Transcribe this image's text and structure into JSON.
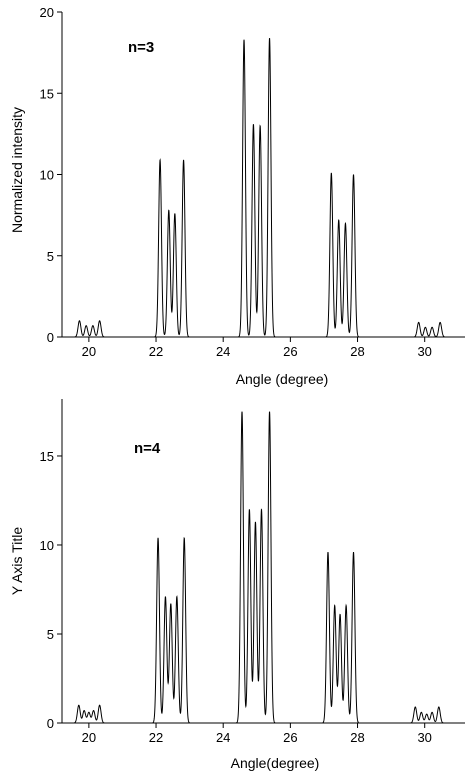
{
  "chart_data": [
    {
      "type": "line",
      "annotation": "n=3",
      "xlabel": "Angle (degree)",
      "ylabel": "Normalized intensity",
      "xlim": [
        19.2,
        31.2
      ],
      "ylim": [
        0,
        20
      ],
      "x_ticks": [
        20,
        22,
        24,
        26,
        28,
        30
      ],
      "y_ticks": [
        0,
        5,
        10,
        15,
        20
      ],
      "x_tick_labels": [
        "20",
        "22",
        "24",
        "26",
        "28",
        "30"
      ],
      "y_tick_labels": [
        "0",
        "5",
        "10",
        "15",
        "20"
      ],
      "grid": false,
      "legend": "none",
      "peaks": [
        {
          "x": 19.72,
          "y": 1.0
        },
        {
          "x": 19.92,
          "y": 0.7
        },
        {
          "x": 20.12,
          "y": 0.7
        },
        {
          "x": 20.32,
          "y": 1.0
        },
        {
          "x": 22.12,
          "y": 10.9
        },
        {
          "x": 22.38,
          "y": 7.8
        },
        {
          "x": 22.56,
          "y": 7.6
        },
        {
          "x": 22.82,
          "y": 10.9
        },
        {
          "x": 24.62,
          "y": 18.3
        },
        {
          "x": 24.9,
          "y": 13.1
        },
        {
          "x": 25.1,
          "y": 13.0
        },
        {
          "x": 25.38,
          "y": 18.4
        },
        {
          "x": 27.22,
          "y": 10.1
        },
        {
          "x": 27.44,
          "y": 7.2
        },
        {
          "x": 27.64,
          "y": 7.0
        },
        {
          "x": 27.88,
          "y": 10.0
        },
        {
          "x": 29.82,
          "y": 0.9
        },
        {
          "x": 30.02,
          "y": 0.6
        },
        {
          "x": 30.22,
          "y": 0.6
        },
        {
          "x": 30.46,
          "y": 0.9
        }
      ]
    },
    {
      "type": "line",
      "annotation": "n=4",
      "xlabel": "Angle(degree)",
      "ylabel": "Y Axis Title",
      "xlim": [
        19.2,
        31.2
      ],
      "ylim": [
        0,
        18.2
      ],
      "x_ticks": [
        20,
        22,
        24,
        26,
        28,
        30
      ],
      "y_ticks": [
        0,
        5,
        10,
        15
      ],
      "x_tick_labels": [
        "20",
        "22",
        "24",
        "26",
        "28",
        "30"
      ],
      "y_tick_labels": [
        "0",
        "5",
        "10",
        "15"
      ],
      "grid": false,
      "legend": "none",
      "peaks": [
        {
          "x": 19.7,
          "y": 1.0
        },
        {
          "x": 19.86,
          "y": 0.7
        },
        {
          "x": 20.0,
          "y": 0.6
        },
        {
          "x": 20.14,
          "y": 0.7
        },
        {
          "x": 20.32,
          "y": 1.0
        },
        {
          "x": 22.06,
          "y": 10.4
        },
        {
          "x": 22.28,
          "y": 7.1
        },
        {
          "x": 22.44,
          "y": 6.7
        },
        {
          "x": 22.62,
          "y": 7.1
        },
        {
          "x": 22.84,
          "y": 10.4
        },
        {
          "x": 24.56,
          "y": 17.5
        },
        {
          "x": 24.78,
          "y": 12.0
        },
        {
          "x": 24.96,
          "y": 11.3
        },
        {
          "x": 25.14,
          "y": 12.0
        },
        {
          "x": 25.38,
          "y": 17.5
        },
        {
          "x": 27.12,
          "y": 9.6
        },
        {
          "x": 27.32,
          "y": 6.6
        },
        {
          "x": 27.48,
          "y": 6.1
        },
        {
          "x": 27.66,
          "y": 6.6
        },
        {
          "x": 27.88,
          "y": 9.6
        },
        {
          "x": 29.72,
          "y": 0.9
        },
        {
          "x": 29.9,
          "y": 0.6
        },
        {
          "x": 30.06,
          "y": 0.5
        },
        {
          "x": 30.22,
          "y": 0.6
        },
        {
          "x": 30.42,
          "y": 0.9
        }
      ]
    }
  ]
}
